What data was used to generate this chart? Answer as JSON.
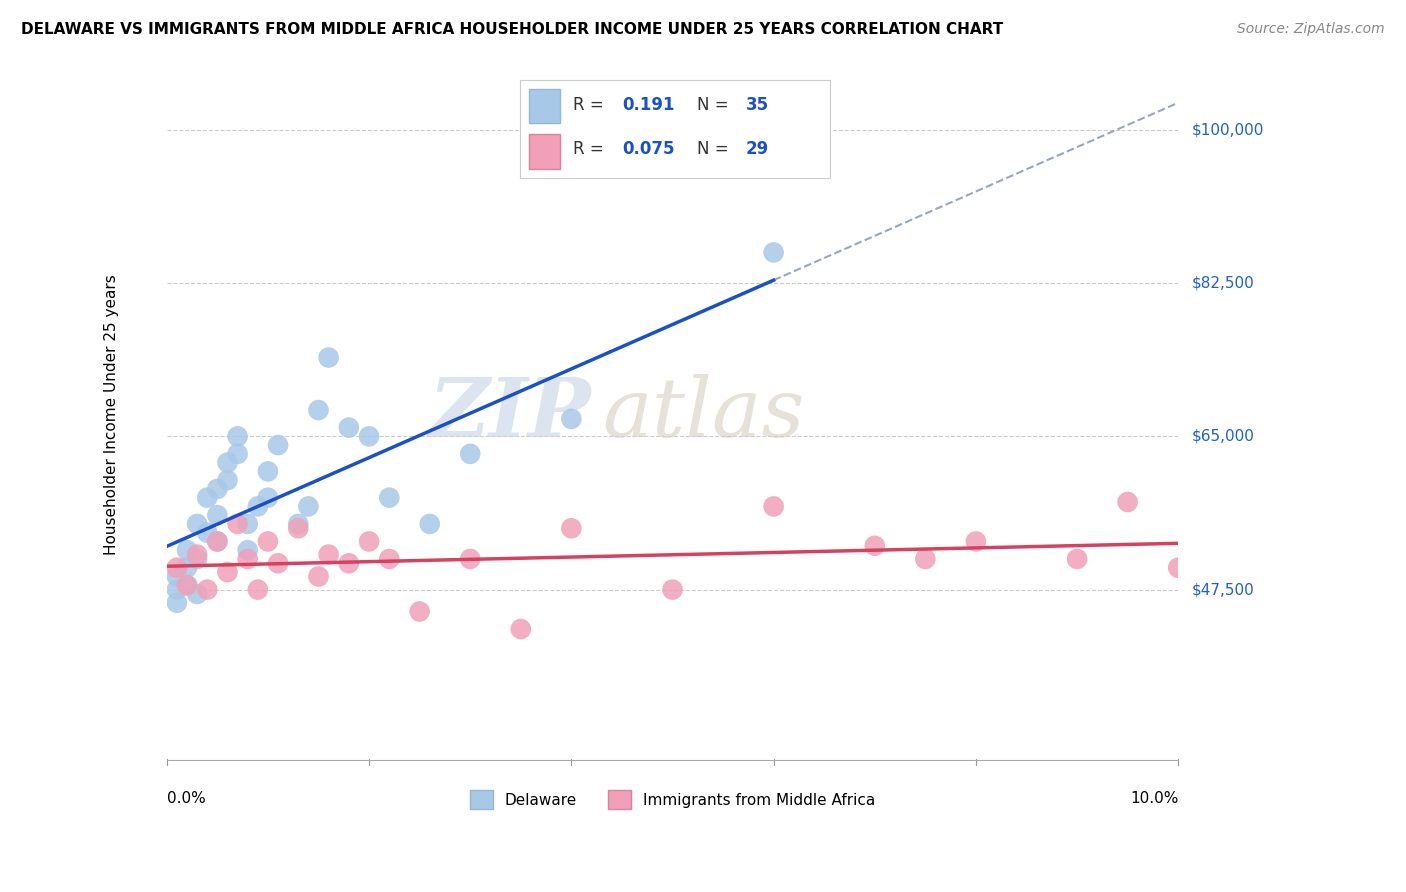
{
  "title": "DELAWARE VS IMMIGRANTS FROM MIDDLE AFRICA HOUSEHOLDER INCOME UNDER 25 YEARS CORRELATION CHART",
  "source": "Source: ZipAtlas.com",
  "ylabel": "Householder Income Under 25 years",
  "xlim": [
    0.0,
    0.1
  ],
  "ylim": [
    28000,
    107000
  ],
  "yticks": [
    47500,
    65000,
    82500,
    100000
  ],
  "ytick_labels": [
    "$47,500",
    "$65,000",
    "$82,500",
    "$100,000"
  ],
  "blue_color": "#a8c8e8",
  "pink_color": "#f0a0b8",
  "blue_line_color": "#1a50c8",
  "pink_line_color": "#d84060",
  "dash_color": "#8090b0",
  "watermark_zip": "#c8d8e8",
  "watermark_atlas": "#d8d0c0",
  "delaware_x": [
    0.001,
    0.001,
    0.001,
    0.002,
    0.002,
    0.002,
    0.003,
    0.003,
    0.003,
    0.004,
    0.004,
    0.005,
    0.005,
    0.005,
    0.006,
    0.006,
    0.007,
    0.007,
    0.008,
    0.008,
    0.009,
    0.01,
    0.01,
    0.011,
    0.013,
    0.014,
    0.015,
    0.016,
    0.018,
    0.02,
    0.022,
    0.026,
    0.03,
    0.04,
    0.06
  ],
  "delaware_y": [
    49000,
    47500,
    46000,
    50000,
    52000,
    48000,
    55000,
    51000,
    47000,
    58000,
    54000,
    59000,
    56000,
    53000,
    62000,
    60000,
    65000,
    63000,
    55000,
    52000,
    57000,
    61000,
    58000,
    64000,
    55000,
    57000,
    68000,
    74000,
    66000,
    65000,
    58000,
    55000,
    63000,
    67000,
    86000
  ],
  "immigrant_x": [
    0.001,
    0.002,
    0.003,
    0.004,
    0.005,
    0.006,
    0.007,
    0.008,
    0.009,
    0.01,
    0.011,
    0.013,
    0.015,
    0.016,
    0.018,
    0.02,
    0.022,
    0.025,
    0.03,
    0.035,
    0.04,
    0.05,
    0.06,
    0.07,
    0.075,
    0.08,
    0.09,
    0.095,
    0.1
  ],
  "immigrant_y": [
    50000,
    48000,
    51500,
    47500,
    53000,
    49500,
    55000,
    51000,
    47500,
    53000,
    50500,
    54500,
    49000,
    51500,
    50500,
    53000,
    51000,
    45000,
    51000,
    43000,
    54500,
    47500,
    57000,
    52500,
    51000,
    53000,
    51000,
    57500,
    50000
  ],
  "legend_R1": "0.191",
  "legend_N1": "35",
  "legend_R2": "0.075",
  "legend_N2": "29"
}
